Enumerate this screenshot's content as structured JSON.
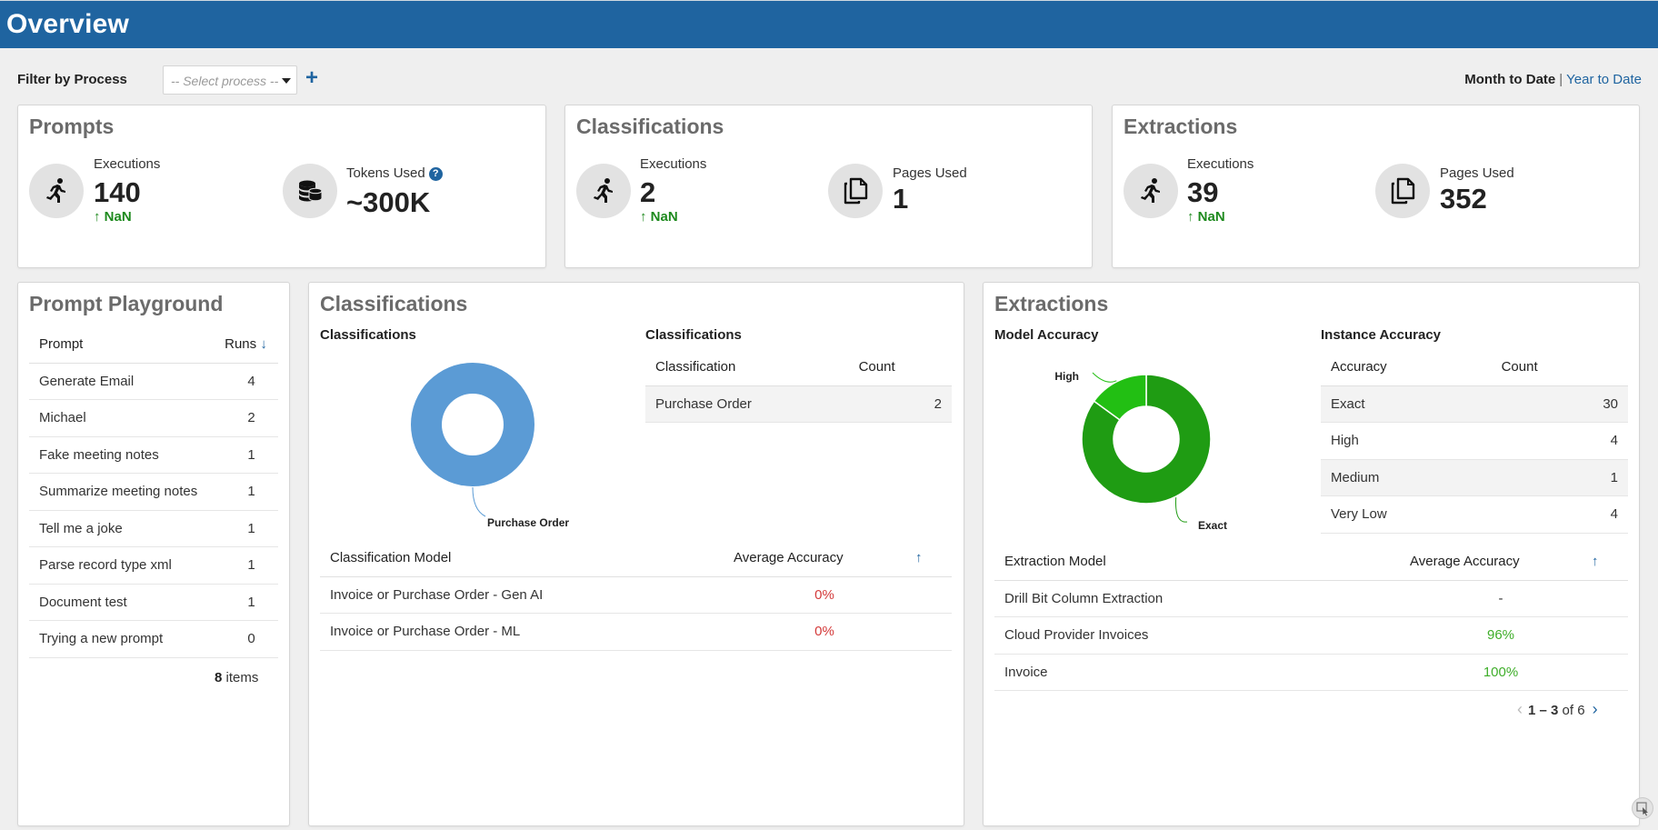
{
  "header": {
    "title": "Overview"
  },
  "filter": {
    "label": "Filter by Process",
    "placeholder": "-- Select process --",
    "add_symbol": "+"
  },
  "period": {
    "active": "Month to Date",
    "separator": "|",
    "other": "Year to Date"
  },
  "summary": {
    "prompts": {
      "title": "Prompts",
      "executions_label": "Executions",
      "executions_value": "140",
      "executions_trend": "NaN",
      "tokens_label": "Tokens Used",
      "tokens_help": "?",
      "tokens_value": "~300K"
    },
    "classifications": {
      "title": "Classifications",
      "executions_label": "Executions",
      "executions_value": "2",
      "executions_trend": "NaN",
      "pages_label": "Pages Used",
      "pages_value": "1"
    },
    "extractions": {
      "title": "Extractions",
      "executions_label": "Executions",
      "executions_value": "39",
      "executions_trend": "NaN",
      "pages_label": "Pages Used",
      "pages_value": "352"
    }
  },
  "playground": {
    "title": "Prompt Playground",
    "col_prompt": "Prompt",
    "col_runs": "Runs",
    "sort_icon": "↓",
    "rows": [
      {
        "prompt": "Generate Email",
        "runs": "4"
      },
      {
        "prompt": "Michael",
        "runs": "2"
      },
      {
        "prompt": "Fake meeting notes",
        "runs": "1"
      },
      {
        "prompt": "Summarize meeting notes",
        "runs": "1"
      },
      {
        "prompt": "Tell me a joke",
        "runs": "1"
      },
      {
        "prompt": "Parse record type xml",
        "runs": "1"
      },
      {
        "prompt": "Document test",
        "runs": "1"
      },
      {
        "prompt": "Trying a new prompt",
        "runs": "0"
      }
    ],
    "items_count": "8",
    "items_label": "items"
  },
  "classifications_panel": {
    "title": "Classifications",
    "chart_title": "Classifications",
    "table_title": "Classifications",
    "col_classification": "Classification",
    "col_count": "Count",
    "rows": [
      {
        "classification": "Purchase Order",
        "count": "2"
      }
    ],
    "model_col": "Classification Model",
    "accuracy_col": "Average Accuracy",
    "sort_icon": "↑",
    "models": [
      {
        "name": "Invoice or Purchase Order - Gen AI",
        "accuracy": "0%"
      },
      {
        "name": "Invoice or Purchase Order - ML",
        "accuracy": "0%"
      }
    ]
  },
  "extractions_panel": {
    "title": "Extractions",
    "chart_title": "Model Accuracy",
    "table_title": "Instance Accuracy",
    "col_accuracy": "Accuracy",
    "col_count": "Count",
    "rows": [
      {
        "accuracy": "Exact",
        "count": "30"
      },
      {
        "accuracy": "High",
        "count": "4"
      },
      {
        "accuracy": "Medium",
        "count": "1"
      },
      {
        "accuracy": "Very Low",
        "count": "4"
      }
    ],
    "model_col": "Extraction Model",
    "accuracy_col": "Average Accuracy",
    "sort_icon": "↑",
    "models": [
      {
        "name": "Drill Bit Column Extraction",
        "accuracy": "-"
      },
      {
        "name": "Cloud Provider Invoices",
        "accuracy": "96%"
      },
      {
        "name": "Invoice",
        "accuracy": "100%"
      }
    ],
    "pager": {
      "range": "1 – 3",
      "of_label": "of",
      "total": "6",
      "prev": "‹",
      "next": "›"
    }
  },
  "chart_data": [
    {
      "type": "pie",
      "donut": true,
      "title": "Classifications",
      "categories": [
        "Purchase Order"
      ],
      "values": [
        2
      ],
      "colors": [
        "#5b9bd5"
      ]
    },
    {
      "type": "pie",
      "donut": true,
      "title": "Model Accuracy",
      "categories": [
        "Exact",
        "High"
      ],
      "values": [
        85,
        15
      ],
      "colors": [
        "#1f9c13",
        "#22bf13"
      ]
    }
  ],
  "colors": {
    "header_bg": "#1f64a0",
    "trend_up": "#1e8a1e",
    "accuracy_low": "#d43a3a",
    "accuracy_high": "#3fae2a"
  }
}
